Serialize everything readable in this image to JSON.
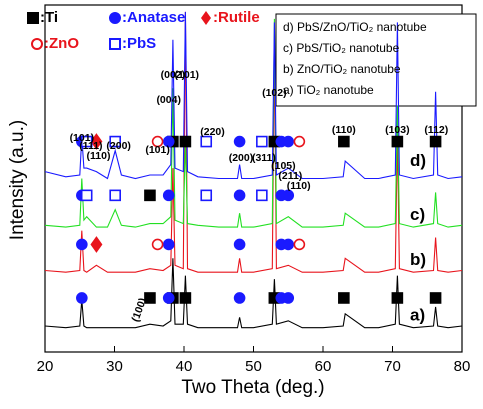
{
  "chart_data": {
    "type": "line",
    "xlabel": "Two Theta (deg.)",
    "ylabel": "Intensity (a.u.)",
    "xlim": [
      20,
      80
    ],
    "xticks": [
      20,
      30,
      40,
      50,
      60,
      70,
      80
    ],
    "ylim": [
      0,
      100
    ],
    "x": [
      20,
      23,
      25.0,
      25.3,
      25.6,
      26.0,
      27.4,
      29,
      30.1,
      31,
      33,
      35.1,
      37,
      38.1,
      38.4,
      38.7,
      39.9,
      40.2,
      40.5,
      42,
      45,
      47.7,
      48.0,
      48.3,
      50,
      52.7,
      53.0,
      53.3,
      55.0,
      57,
      60,
      62.9,
      63.2,
      66,
      68,
      70.4,
      70.7,
      71.0,
      73,
      75.9,
      76.2,
      76.5,
      78,
      80
    ],
    "series": [
      {
        "name": "a)",
        "description": "a) TiO₂ nanotube",
        "color": "#000000",
        "values": [
          7.5,
          7,
          7.5,
          15,
          7.5,
          7,
          7,
          7,
          7,
          7,
          7,
          8,
          7.5,
          9,
          27,
          8,
          8,
          22,
          8,
          7,
          7,
          7,
          10,
          7,
          7,
          8,
          21,
          8,
          9,
          7,
          7,
          7.5,
          11,
          7,
          7,
          8,
          22,
          8,
          7,
          7.5,
          13,
          7.5,
          7,
          7.5
        ]
      },
      {
        "name": "b)",
        "description": "b) ZnO/TiO₂ nanotube",
        "color": "#e8141c",
        "values": [
          23.5,
          23,
          23.5,
          35,
          23.5,
          23,
          25,
          23,
          23,
          23,
          23,
          24,
          23.5,
          25,
          53,
          25,
          24,
          98,
          24,
          23,
          23,
          23,
          27,
          23,
          23,
          24,
          88,
          24,
          25,
          23,
          23,
          23.5,
          27,
          23,
          23,
          24,
          63,
          24,
          23,
          23.5,
          33,
          23.5,
          23,
          23.5
        ]
      },
      {
        "name": "c)",
        "description": "c) PbS/TiO₂ nanotube",
        "color": "#22e022",
        "values": [
          36.5,
          36,
          36.5,
          50,
          38,
          39,
          36,
          36,
          41,
          36.5,
          36,
          37,
          37,
          39,
          76,
          38,
          37,
          61,
          37,
          36.5,
          36,
          36,
          40,
          36,
          36,
          37,
          96,
          37,
          39,
          36,
          36,
          36.5,
          40,
          36,
          36,
          37,
          71,
          37,
          36,
          37,
          46,
          37,
          36,
          36.5
        ]
      },
      {
        "name": "d)",
        "description": "d) PbS/ZnO/TiO₂ nanotube",
        "color": "#1a1aff",
        "values": [
          52,
          50.5,
          51,
          62,
          53,
          53,
          52,
          50,
          58,
          51,
          50,
          51,
          51,
          54,
          90,
          53,
          52,
          98,
          52,
          50.5,
          50,
          50,
          54,
          50,
          50,
          51,
          95,
          51,
          53,
          50,
          50,
          50.5,
          55,
          50,
          50,
          51,
          95,
          51,
          50,
          51,
          75,
          51,
          50,
          50.5
        ]
      }
    ],
    "legend_order": [
      3,
      2,
      1,
      0
    ],
    "phases": [
      {
        "label": ":Ti",
        "symbol": "square",
        "filled": true,
        "color": "#000000",
        "peaks": [
          [
            35.1,
            38.4,
            40.2,
            53.0,
            63.0,
            70.7,
            76.2
          ],
          [],
          [
            35.1
          ],
          [
            38.4,
            40.2,
            53.0,
            63.0,
            70.7,
            76.2
          ]
        ]
      },
      {
        "label": ":Anatase",
        "symbol": "circle",
        "filled": true,
        "color": "#1a1aff",
        "peaks": [
          [
            25.3,
            37.8,
            48.0,
            54.0,
            55.0
          ],
          [
            25.3,
            37.8,
            48.0,
            54.0,
            55.0
          ],
          [
            25.3,
            37.8,
            48.0,
            54.0,
            55.0
          ],
          [
            25.3,
            37.8,
            48.0,
            54.0,
            55.0
          ]
        ]
      },
      {
        "label": ":Rutile",
        "symbol": "diamond",
        "filled": true,
        "color": "#e8141c",
        "peaks": [
          [],
          [
            27.4
          ],
          [],
          [
            27.4
          ]
        ]
      },
      {
        "label": ":ZnO",
        "symbol": "circle",
        "filled": false,
        "color": "#e8141c",
        "peaks": [
          [],
          [
            36.2,
            56.6
          ],
          [],
          [
            36.2,
            56.6
          ]
        ]
      },
      {
        "label": ":PbS",
        "symbol": "square",
        "filled": false,
        "color": "#1a1aff",
        "peaks": [
          [],
          [],
          [
            26.0,
            30.1,
            43.2,
            51.2
          ],
          [
            26.0,
            30.1,
            43.2,
            51.2
          ]
        ]
      }
    ],
    "annotations": [
      {
        "text": "(101)",
        "x": 25.3
      },
      {
        "text": "(111)",
        "x": 26.6
      },
      {
        "text": "(110)",
        "x": 27.7
      },
      {
        "text": "(200)",
        "x": 30.6
      },
      {
        "text": "(101)",
        "x": 36.2
      },
      {
        "text": "(004)",
        "x": 37.8
      },
      {
        "text": "(002)",
        "x": 38.4
      },
      {
        "text": "(101)",
        "x": 40.4
      },
      {
        "text": "(220)",
        "x": 44.1
      },
      {
        "text": "(200)",
        "x": 48.2
      },
      {
        "text": "(311)",
        "x": 51.5
      },
      {
        "text": "(102)",
        "x": 53.0
      },
      {
        "text": "(105)",
        "x": 54.3
      },
      {
        "text": "(211)",
        "x": 55.3
      },
      {
        "text": "(110)",
        "x": 56.5
      },
      {
        "text": "(110)",
        "x": 63.0
      },
      {
        "text": "(103)",
        "x": 70.7
      },
      {
        "text": "(112)",
        "x": 76.3
      },
      {
        "text": "(100)",
        "x": 33.6
      }
    ]
  }
}
